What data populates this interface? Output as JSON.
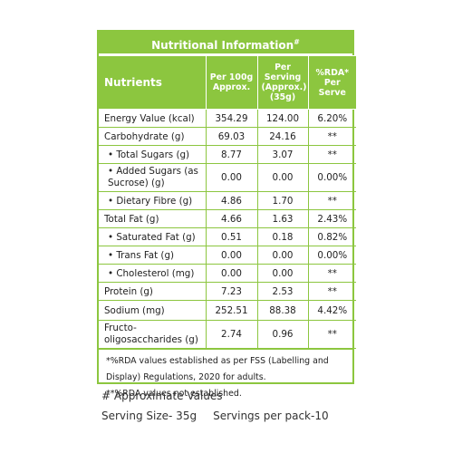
{
  "panel": {
    "title": "Nutritional Information",
    "title_mark": "#",
    "columns": {
      "nutrients": "Nutrients",
      "per100g": "Per 100g Approx.",
      "perServing": "Per Serving (Approx.) (35g)",
      "rda": "%RDA* Per Serve"
    },
    "rows": [
      {
        "name": "Energy Value (kcal)",
        "per100g": "354.29",
        "perServing": "124.00",
        "rda": "6.20%"
      },
      {
        "name": "Carbohydrate (g)",
        "per100g": "69.03",
        "perServing": "24.16",
        "rda": "**"
      },
      {
        "name": "• Total Sugars (g)",
        "per100g": "8.77",
        "perServing": "3.07",
        "rda": "**"
      },
      {
        "name": "• Added Sugars (as Sucrose) (g)",
        "per100g": "0.00",
        "perServing": "0.00",
        "rda": "0.00%"
      },
      {
        "name": "• Dietary Fibre (g)",
        "per100g": "4.86",
        "perServing": "1.70",
        "rda": "**"
      },
      {
        "name": "Total Fat (g)",
        "per100g": "4.66",
        "perServing": "1.63",
        "rda": "2.43%"
      },
      {
        "name": "• Saturated Fat (g)",
        "per100g": "0.51",
        "perServing": "0.18",
        "rda": "0.82%"
      },
      {
        "name": "• Trans Fat (g)",
        "per100g": "0.00",
        "perServing": "0.00",
        "rda": "0.00%"
      },
      {
        "name": "• Cholesterol (mg)",
        "per100g": "0.00",
        "perServing": "0.00",
        "rda": "**"
      },
      {
        "name": "Protein (g)",
        "per100g": "7.23",
        "perServing": "2.53",
        "rda": "**"
      },
      {
        "name": "Sodium (mg)",
        "per100g": "252.51",
        "perServing": "88.38",
        "rda": "4.42%"
      },
      {
        "name": "Fructo-oligosaccharides (g)",
        "per100g": "2.74",
        "perServing": "0.96",
        "rda": "**"
      }
    ],
    "footnotes": [
      "*%RDA values established as per FSS (Labelling and Display) Regulations, 2020 for adults.",
      "**%RDA values not established."
    ]
  },
  "notes": {
    "approx": "# Approximate Values",
    "serving_size": "Serving Size- 35g",
    "servings_per_pack": "Servings per pack-10"
  },
  "colors": {
    "accent": "#8cc63f"
  }
}
